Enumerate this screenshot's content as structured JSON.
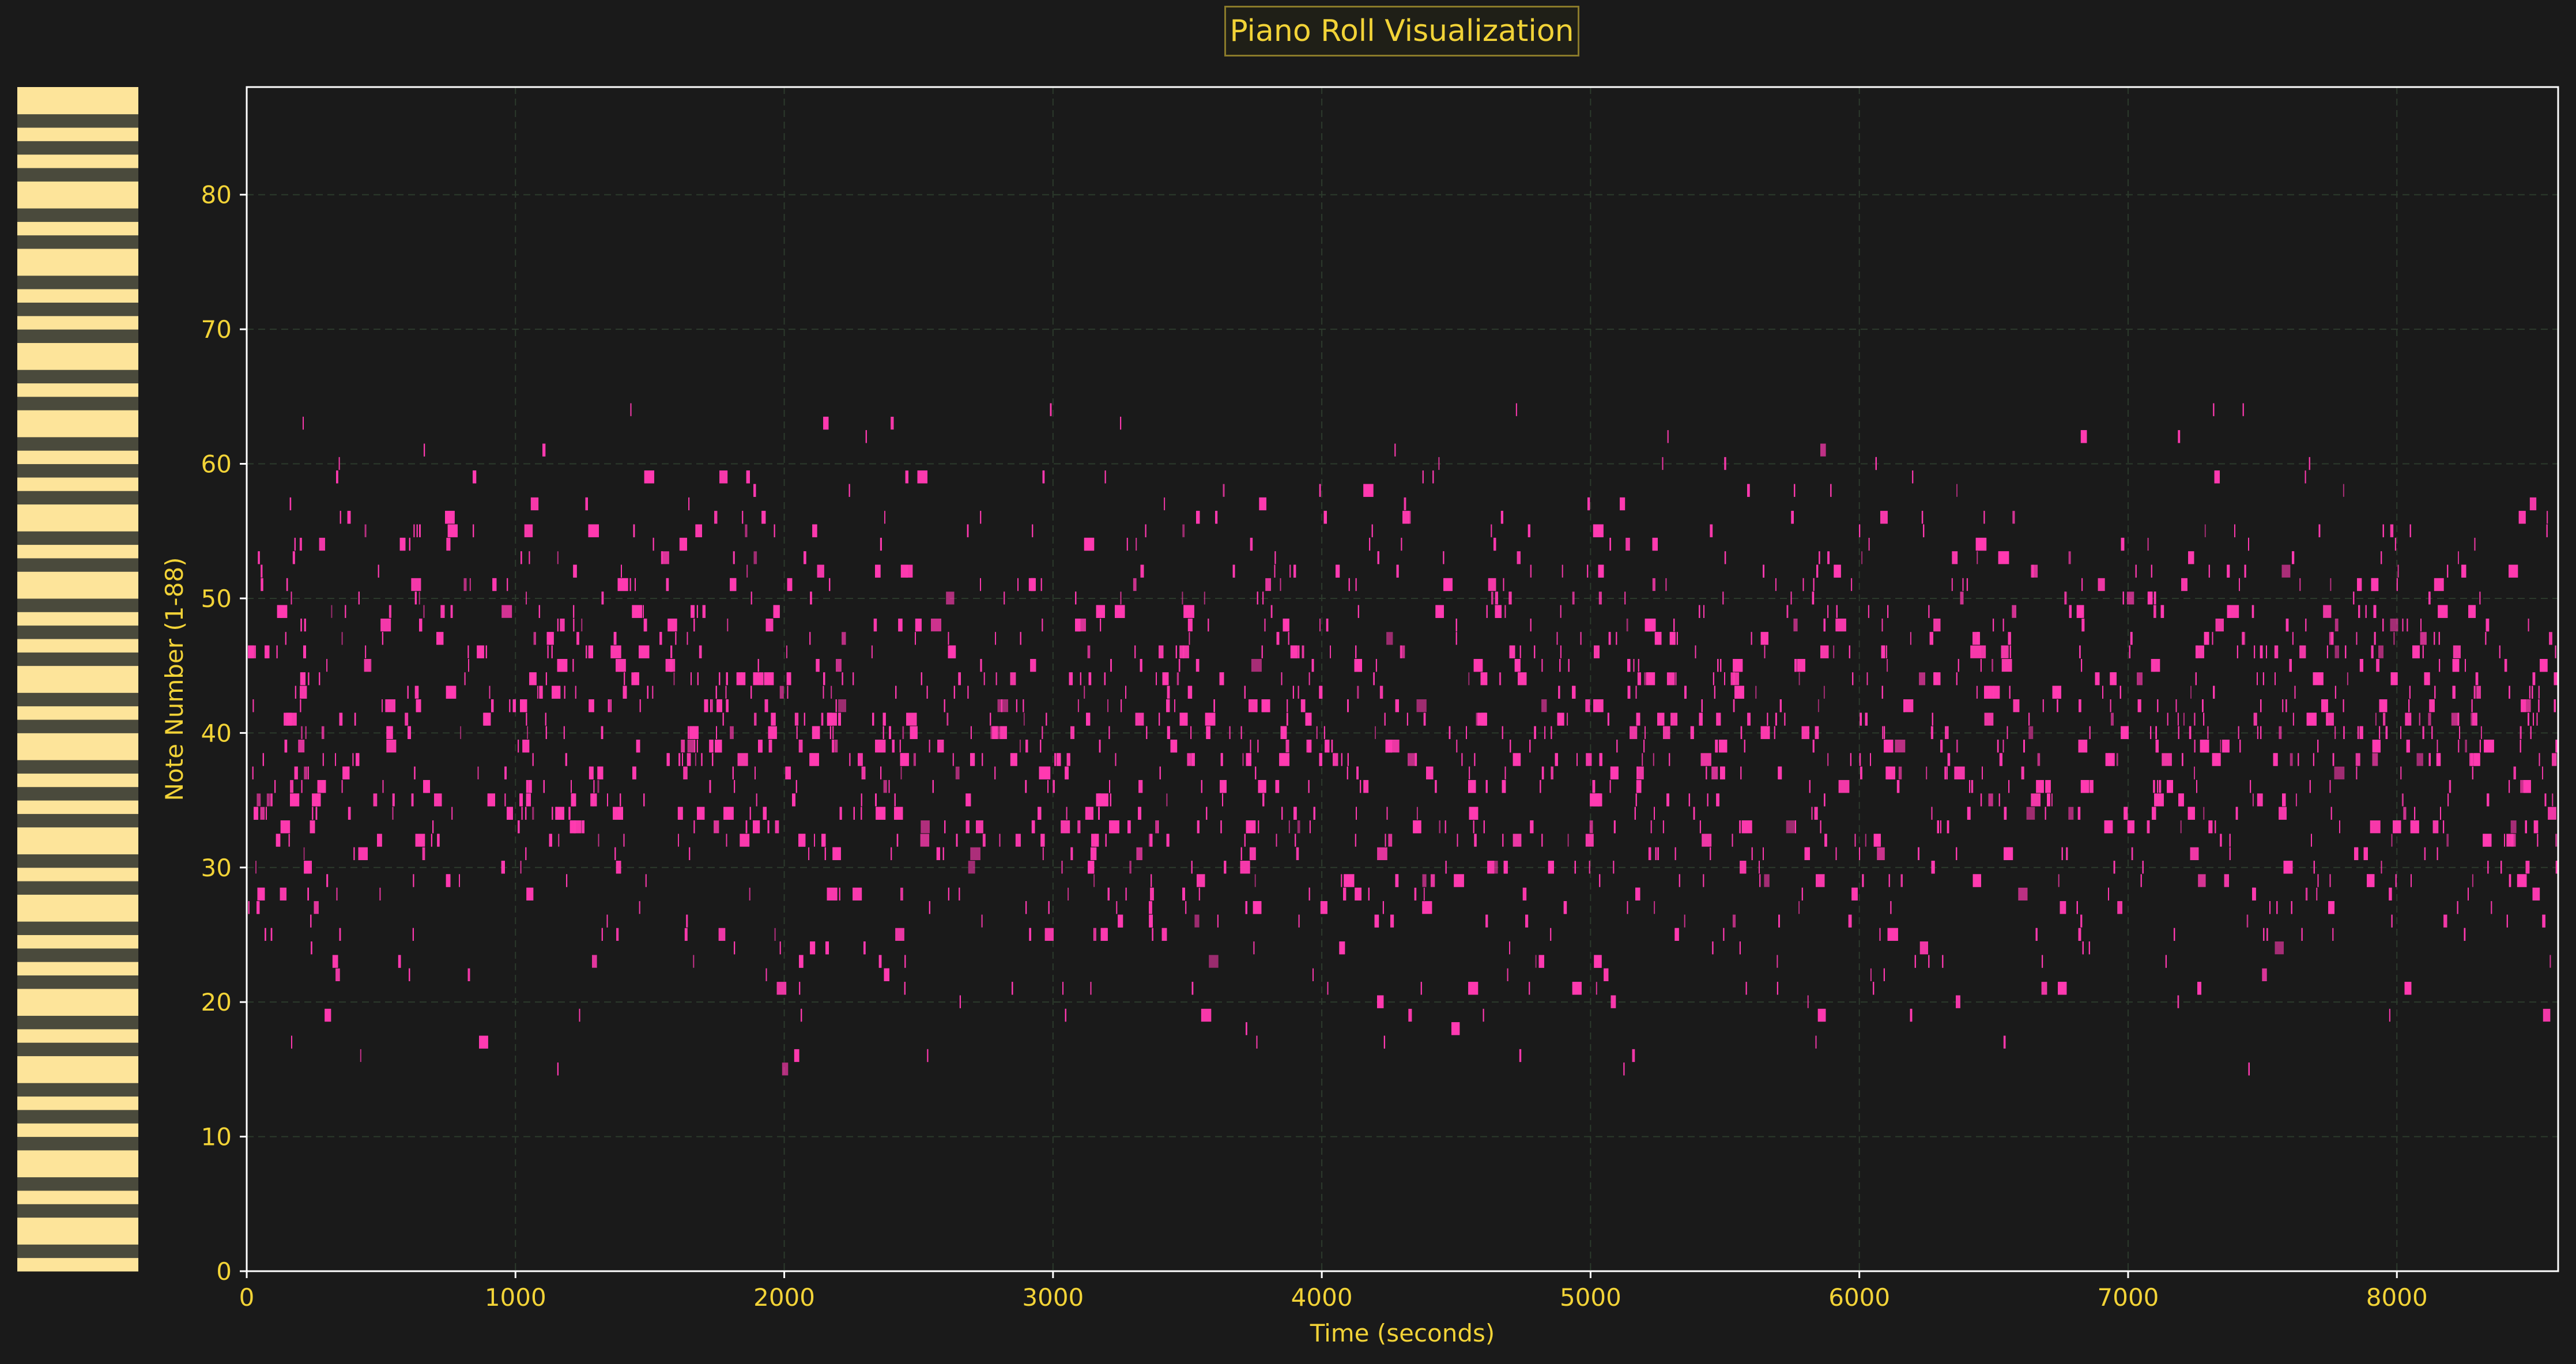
{
  "chart_data": {
    "type": "scatter",
    "title": "Piano Roll Visualization",
    "xlabel": "Time (seconds)",
    "ylabel": "Note Number (1-88)",
    "xlim": [
      0,
      8600
    ],
    "ylim": [
      0,
      88
    ],
    "xticks": [
      0,
      1000,
      2000,
      3000,
      4000,
      5000,
      6000,
      7000,
      8000
    ],
    "yticks": [
      0,
      10,
      20,
      30,
      40,
      50,
      60,
      70,
      80
    ],
    "grid": true,
    "legend": "none",
    "colors": {
      "background": "#1a1a1a",
      "text": "#f2d337",
      "notes": "#ff3ab0",
      "white_key": "#fde49a",
      "black_key": "#4a4a3c",
      "grid": "#2c3a2c",
      "axes": "#ffffff"
    },
    "series": [
      {
        "marker": "vertical note bar",
        "description_of_distribution": "notes spread over entire time range, pitch mostly 16-64",
        "x_range": [
          0,
          8600
        ],
        "pitch_range": [
          15,
          64
        ],
        "dense_pitch_range": [
          20,
          60
        ],
        "density_peak_pitch": 40,
        "note_duration_range": [
          2,
          40
        ]
      }
    ],
    "keyboard": {
      "keys": 88,
      "pattern": [
        "w",
        "b",
        "w",
        "w",
        "b",
        "w",
        "b",
        "w",
        "w",
        "b",
        "w",
        "b"
      ]
    }
  }
}
